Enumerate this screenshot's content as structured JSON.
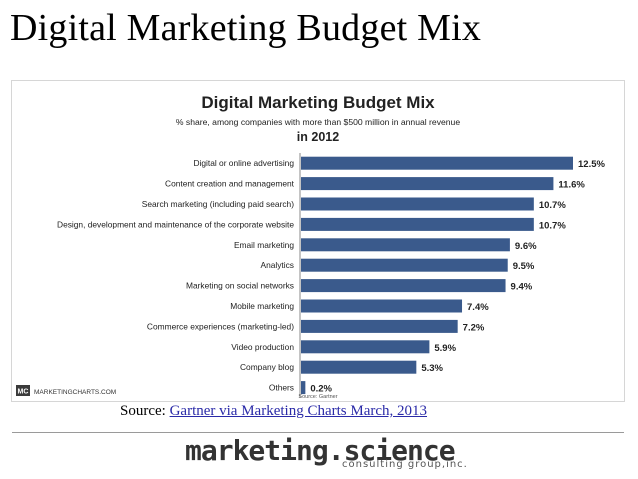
{
  "slide": {
    "title": "Digital Marketing Budget Mix",
    "source_prefix": "Source: ",
    "source_link": "Gartner via Marketing Charts March, 2013",
    "brand_name": "marketing.science",
    "brand_tagline": "consulting group,inc."
  },
  "chart_data": {
    "type": "bar",
    "orientation": "horizontal",
    "title": "Digital Marketing Budget Mix",
    "subtitle": "% share, among companies with more than $500 million in annual revenue",
    "subtitle2": "in 2012",
    "categories": [
      "Digital or online advertising",
      "Content creation and management",
      "Search marketing (including paid search)",
      "Design, development and maintenance of the corporate website",
      "Email marketing",
      "Analytics",
      "Marketing on social networks",
      "Mobile marketing",
      "Commerce experiences (marketing-led)",
      "Video production",
      "Company blog",
      "Others"
    ],
    "values": [
      12.5,
      11.6,
      10.7,
      10.7,
      9.6,
      9.5,
      9.4,
      7.4,
      7.2,
      5.9,
      5.3,
      0.2
    ],
    "value_labels": [
      "12.5%",
      "11.6%",
      "10.7%",
      "10.7%",
      "9.6%",
      "9.5%",
      "9.4%",
      "7.4%",
      "7.2%",
      "5.9%",
      "5.3%",
      "0.2%"
    ],
    "xlim": [
      0,
      12.5
    ],
    "bar_color": "#3a5a8c",
    "grid": false,
    "legend": "none",
    "footer_source": "Source: Gartner",
    "logo_badge": "MC",
    "logo_text": "MARKETINGCHARTS.COM"
  }
}
